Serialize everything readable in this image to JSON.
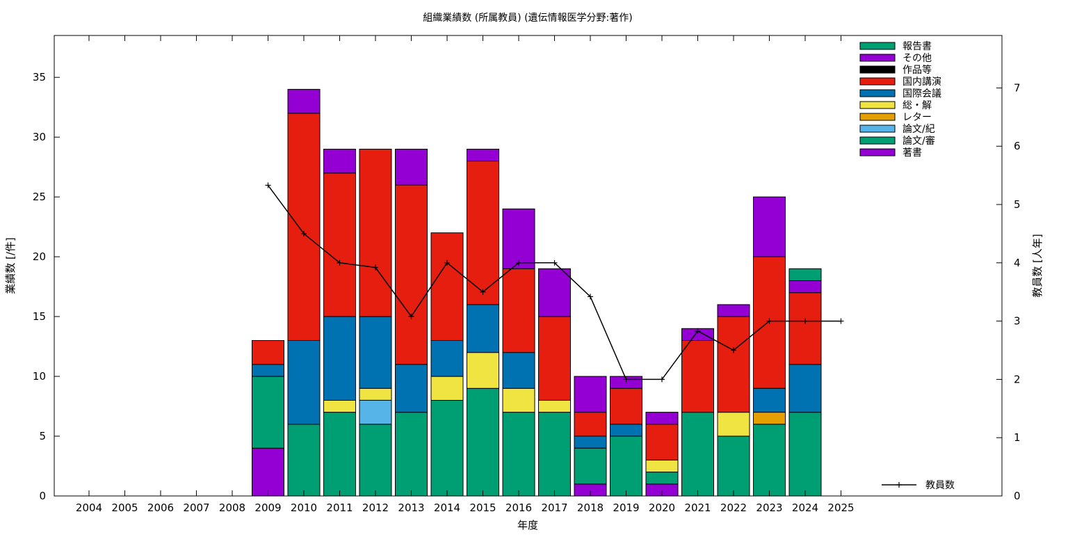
{
  "chart_data": {
    "type": "bar",
    "stacked": true,
    "title": "組織業績数 (所属教員) (遺伝情報医学分野:著作)",
    "xlabel": "年度",
    "ylabel": "業績数 [/件]",
    "y2label": "教員数 [人年]",
    "categories": [
      "2004",
      "2005",
      "2006",
      "2007",
      "2008",
      "2009",
      "2010",
      "2011",
      "2012",
      "2013",
      "2014",
      "2015",
      "2016",
      "2017",
      "2018",
      "2019",
      "2020",
      "2021",
      "2022",
      "2023",
      "2024",
      "2025"
    ],
    "ylim": [
      0,
      38.5
    ],
    "y2lim": [
      0,
      7.9
    ],
    "yticks": [
      0,
      5,
      10,
      15,
      20,
      25,
      30,
      35
    ],
    "y2ticks": [
      0,
      1,
      2,
      3,
      4,
      5,
      6,
      7
    ],
    "legend_position": "top-right",
    "series": [
      {
        "name": "著書",
        "color": "#9400d3",
        "values": [
          0,
          0,
          0,
          0,
          0,
          4,
          0,
          0,
          0,
          0,
          0,
          0,
          0,
          0,
          1,
          0,
          1,
          0,
          0,
          0,
          0,
          0
        ]
      },
      {
        "name": "論文/審",
        "color": "#009e73",
        "values": [
          0,
          0,
          0,
          0,
          0,
          6,
          6,
          7,
          6,
          7,
          8,
          9,
          7,
          7,
          3,
          5,
          1,
          7,
          5,
          6,
          7,
          0
        ]
      },
      {
        "name": "論文/紀",
        "color": "#56b4e9",
        "values": [
          0,
          0,
          0,
          0,
          0,
          0,
          0,
          0,
          2,
          0,
          0,
          0,
          0,
          0,
          0,
          0,
          0,
          0,
          0,
          0,
          0,
          0
        ]
      },
      {
        "name": "レター",
        "color": "#e69f00",
        "values": [
          0,
          0,
          0,
          0,
          0,
          0,
          0,
          0,
          0,
          0,
          0,
          0,
          0,
          0,
          0,
          0,
          0,
          0,
          0,
          1,
          0,
          0
        ]
      },
      {
        "name": "総・解",
        "color": "#f0e442",
        "values": [
          0,
          0,
          0,
          0,
          0,
          0,
          0,
          1,
          1,
          0,
          2,
          3,
          2,
          1,
          0,
          0,
          1,
          0,
          2,
          0,
          0,
          0
        ]
      },
      {
        "name": "国際会議",
        "color": "#0072b2",
        "values": [
          0,
          0,
          0,
          0,
          0,
          1,
          7,
          7,
          6,
          4,
          3,
          4,
          3,
          0,
          1,
          1,
          0,
          0,
          0,
          2,
          4,
          0
        ]
      },
      {
        "name": "国内講演",
        "color": "#e51e10",
        "values": [
          0,
          0,
          0,
          0,
          0,
          2,
          19,
          12,
          14,
          15,
          9,
          12,
          7,
          7,
          2,
          3,
          3,
          6,
          8,
          11,
          6,
          0
        ]
      },
      {
        "name": "作品等",
        "color": "#000000",
        "values": [
          0,
          0,
          0,
          0,
          0,
          0,
          0,
          0,
          0,
          0,
          0,
          0,
          0,
          0,
          0,
          0,
          0,
          0,
          0,
          0,
          0,
          0
        ]
      },
      {
        "name": "その他",
        "color": "#9400d3",
        "values": [
          0,
          0,
          0,
          0,
          0,
          0,
          2,
          2,
          0,
          3,
          0,
          1,
          5,
          4,
          3,
          1,
          1,
          1,
          1,
          5,
          1,
          0
        ]
      },
      {
        "name": "報告書",
        "color": "#009e73",
        "values": [
          0,
          0,
          0,
          0,
          0,
          0,
          0,
          0,
          0,
          0,
          0,
          0,
          0,
          0,
          0,
          0,
          0,
          0,
          0,
          0,
          1,
          0
        ]
      }
    ],
    "line_series": {
      "name": "教員数",
      "axis": "y2",
      "color": "#000000",
      "x": [
        "2009",
        "2010",
        "2011",
        "2012",
        "2013",
        "2014",
        "2015",
        "2016",
        "2017",
        "2018",
        "2019",
        "2020",
        "2021",
        "2022",
        "2023",
        "2024",
        "2025"
      ],
      "values": [
        5.33,
        4.5,
        4.0,
        3.92,
        3.08,
        4.0,
        3.5,
        4.0,
        4.0,
        3.42,
        2.0,
        2.0,
        2.83,
        2.5,
        3.0,
        3.0,
        3.0
      ]
    }
  }
}
